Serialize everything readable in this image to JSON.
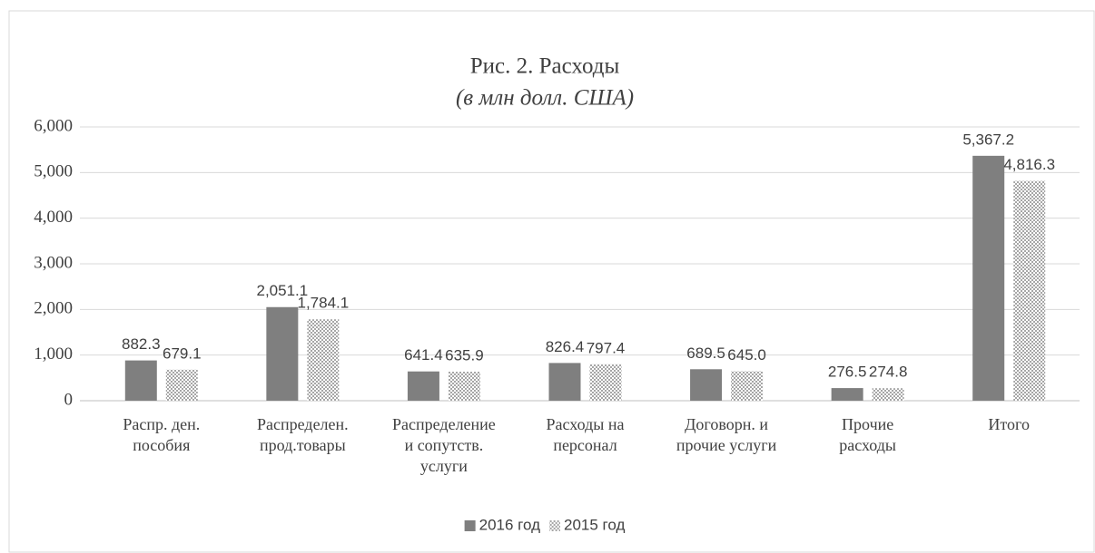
{
  "chart_data": {
    "type": "bar",
    "title": "Рис. 2. Расходы",
    "subtitle": "(в млн долл. США)",
    "categories": [
      [
        "Распр. ден.",
        "пособия"
      ],
      [
        "Распределен.",
        "прод.товары"
      ],
      [
        "Распределение",
        "и сопутств.",
        "услуги"
      ],
      [
        "Расходы на",
        "персонал"
      ],
      [
        "Договорн. и",
        "прочие услуги"
      ],
      [
        "Прочие",
        "расходы"
      ],
      [
        "Итого"
      ]
    ],
    "series": [
      {
        "name": "2016 год",
        "color": "#7f7f7f",
        "values": [
          882.3,
          2051.1,
          641.4,
          826.4,
          689.5,
          276.5,
          5367.2
        ],
        "value_labels": [
          "882.3",
          "2,051.1",
          "641.4",
          "826.4",
          "689.5",
          "276.5",
          "5,367.2"
        ]
      },
      {
        "name": "2015 год",
        "color": "#a6a6a6",
        "hatch": true,
        "values": [
          679.1,
          1784.1,
          635.9,
          797.4,
          645.0,
          274.8,
          4816.3
        ],
        "value_labels": [
          "679.1",
          "1,784.1",
          "635.9",
          "797.4",
          "645.0",
          "274.8",
          "4,816.3"
        ]
      }
    ],
    "ylim": [
      0,
      6000
    ],
    "yticks": [
      0,
      {
        "value": 1000,
        "label": "1,000"
      },
      {
        "value": 2000,
        "label": "2,000"
      },
      {
        "value": 3000,
        "label": "3,000"
      },
      {
        "value": 4000,
        "label": "4,000"
      },
      {
        "value": 5000,
        "label": "5,000"
      },
      {
        "value": 6000,
        "label": "6,000"
      }
    ],
    "grid": true,
    "legend": "bottom"
  }
}
